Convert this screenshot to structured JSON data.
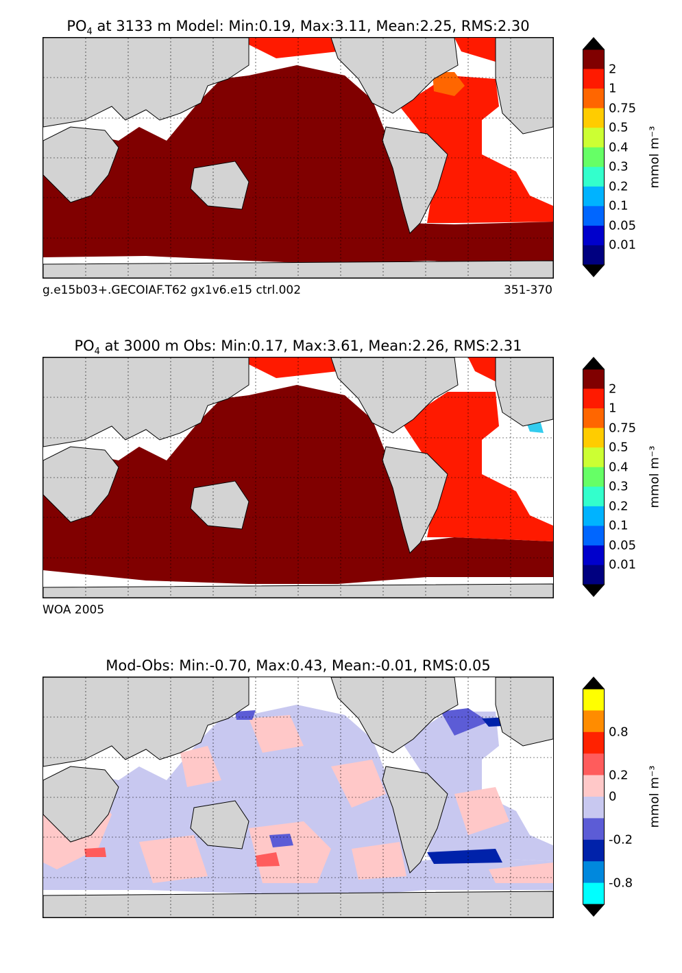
{
  "panels": [
    {
      "title_prefix": "PO",
      "title_sub": "4",
      "title_rest": " at 3133 m Model: Min:0.19, Max:3.11, Mean:2.25, RMS:2.30",
      "footer_left": "g.e15b03+.GECOIAF.T62 gx1v6.e15 ctrl.002",
      "footer_right": "351-370",
      "unit": "mmol m⁻³",
      "colorbar_labels": [
        "2",
        "1",
        "0.75",
        "0.5",
        "0.4",
        "0.3",
        "0.2",
        "0.1",
        "0.05",
        "0.01"
      ],
      "colorbar_colors": [
        "#800000",
        "#ff1a00",
        "#ff6600",
        "#ffcc00",
        "#ccff33",
        "#66ff66",
        "#33ffcc",
        "#00b3ff",
        "#0066ff",
        "#0000cc",
        "#000080"
      ]
    },
    {
      "title_prefix": "PO",
      "title_sub": "4",
      "title_rest": " at 3000 m Obs: Min:0.17, Max:3.61, Mean:2.26, RMS:2.31",
      "footer_left": "WOA 2005",
      "footer_right": "",
      "unit": "mmol m⁻³",
      "colorbar_labels": [
        "2",
        "1",
        "0.75",
        "0.5",
        "0.4",
        "0.3",
        "0.2",
        "0.1",
        "0.05",
        "0.01"
      ],
      "colorbar_colors": [
        "#800000",
        "#ff1a00",
        "#ff6600",
        "#ffcc00",
        "#ccff33",
        "#66ff66",
        "#33ffcc",
        "#00b3ff",
        "#0066ff",
        "#0000cc",
        "#000080"
      ]
    },
    {
      "title_prefix": "Mod-Obs: Min:-0.70, Max:0.43, Mean:-0.01, RMS:0.05",
      "title_sub": "",
      "title_rest": "",
      "footer_left": "",
      "footer_right": "",
      "unit": "mmol m⁻³",
      "colorbar_labels": [
        "0.8",
        "0.2",
        "0",
        "-0.2",
        "-0.8"
      ],
      "colorbar_colors": [
        "#ffff00",
        "#ff8c00",
        "#ff2200",
        "#ff5c5c",
        "#ffc8c8",
        "#c8c8f0",
        "#5c5cd6",
        "#0022aa",
        "#0088dd",
        "#00ffff"
      ]
    }
  ],
  "colors": {
    "land": "#d3d3d3",
    "nodata": "#ffffff",
    "model_pacific": "#800000",
    "model_atlantic": "#ff1a00",
    "diff_neg": "#c8c8f0",
    "diff_pos": "#ffc8c8"
  }
}
